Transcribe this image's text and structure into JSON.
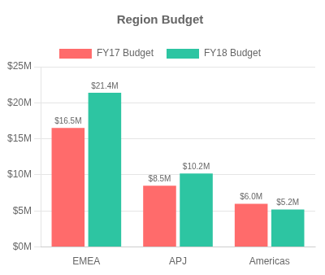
{
  "chart_data": {
    "type": "bar",
    "title": "Region Budget",
    "categories": [
      "EMEA",
      "APJ",
      "Americas"
    ],
    "series": [
      {
        "name": "FY17 Budget",
        "color": "#FF6B6B",
        "values": [
          16.5,
          8.5,
          6.0
        ],
        "value_labels": [
          "$16.5M",
          "$8.5M",
          "$6.0M"
        ]
      },
      {
        "name": "FY18 Budget",
        "color": "#2DC5A2",
        "values": [
          21.4,
          10.2,
          5.2
        ],
        "value_labels": [
          "$21.4M",
          "$10.2M",
          "$5.2M"
        ]
      }
    ],
    "ylim": [
      0,
      25
    ],
    "yticks": [
      {
        "value": 0,
        "label": "$0M"
      },
      {
        "value": 5,
        "label": "$5M"
      },
      {
        "value": 10,
        "label": "$10M"
      },
      {
        "value": 15,
        "label": "$15M"
      },
      {
        "value": 20,
        "label": "$20M"
      },
      {
        "value": 25,
        "label": "$25M"
      }
    ],
    "grid": true,
    "legend": "top",
    "data_labels": true
  }
}
